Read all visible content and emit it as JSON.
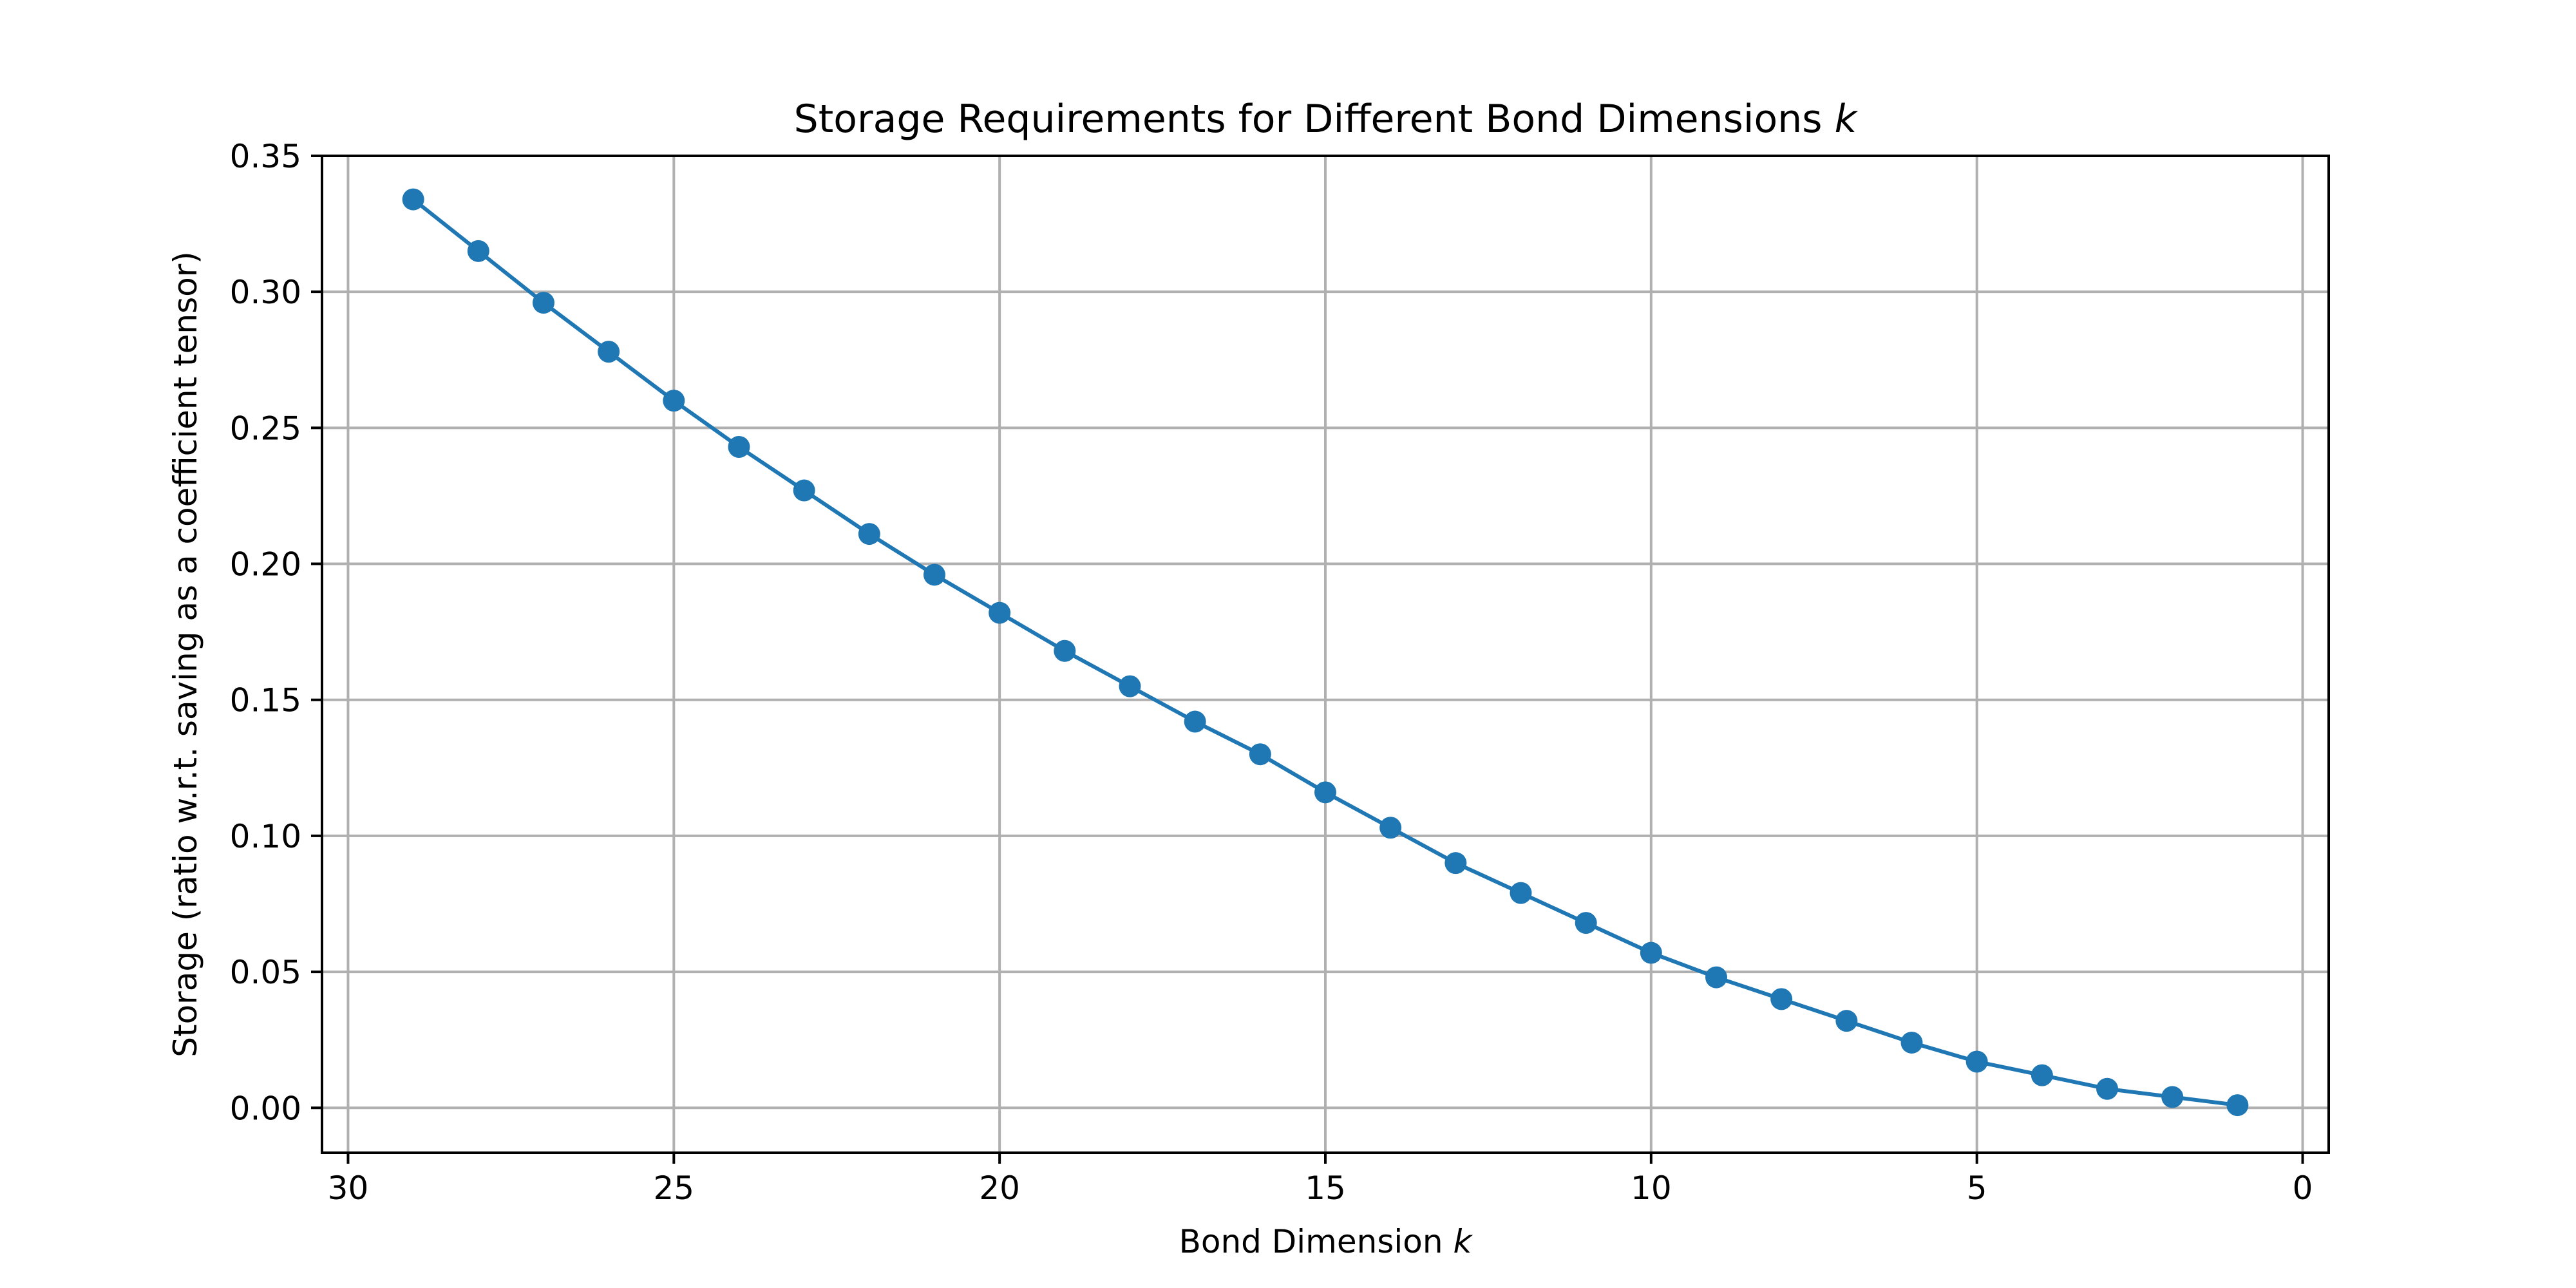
{
  "chart_data": {
    "type": "line",
    "title": "Storage Requirements for Different Bond Dimensions",
    "title_variable": "k",
    "xlabel": "Bond Dimension",
    "xlabel_variable": "k",
    "ylabel": "Storage (ratio w.r.t. saving as a coefficient tensor)",
    "xlim": [
      30.4,
      -0.4
    ],
    "ylim": [
      -0.0165,
      0.35
    ],
    "x_ticks": [
      30,
      25,
      20,
      15,
      10,
      5,
      0
    ],
    "y_ticks": [
      0.0,
      0.05,
      0.1,
      0.15,
      0.2,
      0.25,
      0.3,
      0.35
    ],
    "y_tick_labels": [
      "0.00",
      "0.05",
      "0.10",
      "0.15",
      "0.20",
      "0.25",
      "0.30",
      "0.35"
    ],
    "grid": true,
    "legend": "none",
    "series": [
      {
        "color": "#1f77b4",
        "marker": "circle",
        "x": [
          29,
          28,
          27,
          26,
          25,
          24,
          23,
          22,
          21,
          20,
          19,
          18,
          17,
          16,
          15,
          14,
          13,
          12,
          11,
          10,
          9,
          8,
          7,
          6,
          5,
          4,
          3,
          2,
          1
        ],
        "y": [
          0.334,
          0.315,
          0.296,
          0.278,
          0.26,
          0.243,
          0.227,
          0.211,
          0.196,
          0.182,
          0.168,
          0.155,
          0.142,
          0.13,
          0.116,
          0.103,
          0.09,
          0.079,
          0.068,
          0.057,
          0.048,
          0.04,
          0.032,
          0.024,
          0.017,
          0.012,
          0.007,
          0.004,
          0.001
        ]
      }
    ]
  }
}
